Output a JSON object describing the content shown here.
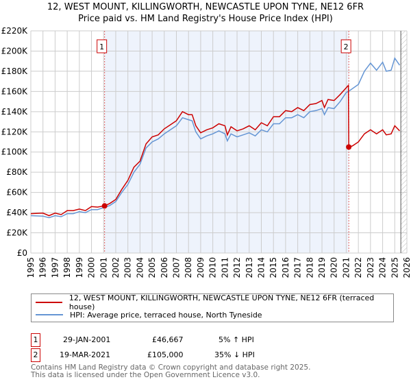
{
  "chart_data": {
    "type": "line",
    "title": "12, WEST MOUNT, KILLINGWORTH, NEWCASTLE UPON TYNE, NE12 6FR",
    "subtitle": "Price paid vs. HM Land Registry's House Price Index (HPI)",
    "xlim": [
      1995,
      2026
    ],
    "ylim": [
      0,
      220000
    ],
    "yticks": [
      "£0",
      "£20K",
      "£40K",
      "£60K",
      "£80K",
      "£100K",
      "£120K",
      "£140K",
      "£160K",
      "£180K",
      "£200K",
      "£220K"
    ],
    "xticks": [
      "1995",
      "1996",
      "1997",
      "1998",
      "1999",
      "2000",
      "2001",
      "2002",
      "2003",
      "2004",
      "2005",
      "2006",
      "2007",
      "2008",
      "2009",
      "2010",
      "2011",
      "2012",
      "2013",
      "2014",
      "2015",
      "2016",
      "2017",
      "2018",
      "2019",
      "2020",
      "2021",
      "2022",
      "2023",
      "2024",
      "2025",
      "2026"
    ],
    "grid": true,
    "colors": {
      "price": "#cc0000",
      "hpi": "#6495d4",
      "shade": "#eef3fc"
    },
    "shaded_range": [
      2001.08,
      2021.21
    ],
    "hatched_from": 2025.5,
    "series": [
      {
        "name": "12, WEST MOUNT, KILLINGWORTH, NEWCASTLE UPON TYNE, NE12 6FR (terraced house)",
        "points": [
          [
            1995,
            39
          ],
          [
            1996,
            39.5
          ],
          [
            1996.5,
            37
          ],
          [
            1997,
            39.5
          ],
          [
            1997.5,
            38
          ],
          [
            1998,
            42
          ],
          [
            1998.5,
            42
          ],
          [
            1999,
            43.5
          ],
          [
            1999.5,
            42
          ],
          [
            2000,
            46
          ],
          [
            2000.5,
            45.5
          ],
          [
            2001.08,
            46.7
          ],
          [
            2001.5,
            49
          ],
          [
            2002,
            53
          ],
          [
            2002.5,
            63
          ],
          [
            2003,
            72
          ],
          [
            2003.5,
            85
          ],
          [
            2004,
            91
          ],
          [
            2004.5,
            108
          ],
          [
            2005,
            115
          ],
          [
            2005.5,
            117
          ],
          [
            2006,
            123
          ],
          [
            2006.5,
            127
          ],
          [
            2007,
            131
          ],
          [
            2007.5,
            140
          ],
          [
            2008,
            137
          ],
          [
            2008.3,
            137
          ],
          [
            2008.6,
            126
          ],
          [
            2009,
            119
          ],
          [
            2009.5,
            122
          ],
          [
            2010,
            124
          ],
          [
            2010.5,
            128
          ],
          [
            2011,
            126
          ],
          [
            2011.2,
            117
          ],
          [
            2011.5,
            125
          ],
          [
            2012,
            121
          ],
          [
            2012.5,
            123
          ],
          [
            2013,
            126
          ],
          [
            2013.5,
            122
          ],
          [
            2014,
            129
          ],
          [
            2014.5,
            126
          ],
          [
            2015,
            135
          ],
          [
            2015.5,
            135
          ],
          [
            2016,
            141
          ],
          [
            2016.5,
            140
          ],
          [
            2017,
            144
          ],
          [
            2017.5,
            141
          ],
          [
            2018,
            147
          ],
          [
            2018.5,
            148
          ],
          [
            2019,
            151
          ],
          [
            2019.2,
            144
          ],
          [
            2019.5,
            152
          ],
          [
            2020,
            151
          ],
          [
            2020.5,
            157
          ],
          [
            2021.18,
            166
          ],
          [
            2021.21,
            105
          ],
          [
            2021.5,
            106
          ],
          [
            2022,
            110
          ],
          [
            2022.5,
            118
          ],
          [
            2023,
            122
          ],
          [
            2023.5,
            118
          ],
          [
            2024,
            122
          ],
          [
            2024.3,
            117
          ],
          [
            2024.7,
            118
          ],
          [
            2025,
            126
          ],
          [
            2025.4,
            121
          ]
        ]
      },
      {
        "name": "HPI: Average price, terraced house, North Tyneside",
        "points": [
          [
            1995,
            37
          ],
          [
            1996,
            36.5
          ],
          [
            1996.5,
            35
          ],
          [
            1997,
            37
          ],
          [
            1997.5,
            36
          ],
          [
            1998,
            39
          ],
          [
            1998.5,
            39
          ],
          [
            1999,
            41
          ],
          [
            1999.5,
            40
          ],
          [
            2000,
            43
          ],
          [
            2000.5,
            43
          ],
          [
            2001,
            45
          ],
          [
            2001.5,
            47
          ],
          [
            2002,
            51
          ],
          [
            2002.5,
            60
          ],
          [
            2003,
            68
          ],
          [
            2003.5,
            80
          ],
          [
            2004,
            88
          ],
          [
            2004.5,
            104
          ],
          [
            2005,
            110
          ],
          [
            2005.5,
            113
          ],
          [
            2006,
            118
          ],
          [
            2006.5,
            122
          ],
          [
            2007,
            126
          ],
          [
            2007.5,
            134
          ],
          [
            2008,
            132
          ],
          [
            2008.3,
            131
          ],
          [
            2008.6,
            120
          ],
          [
            2009,
            113
          ],
          [
            2009.5,
            116
          ],
          [
            2010,
            118
          ],
          [
            2010.5,
            121
          ],
          [
            2011,
            118
          ],
          [
            2011.2,
            111
          ],
          [
            2011.5,
            118
          ],
          [
            2012,
            115
          ],
          [
            2012.5,
            117
          ],
          [
            2013,
            119
          ],
          [
            2013.5,
            116
          ],
          [
            2014,
            122
          ],
          [
            2014.5,
            120
          ],
          [
            2015,
            128
          ],
          [
            2015.5,
            128
          ],
          [
            2016,
            134
          ],
          [
            2016.5,
            134
          ],
          [
            2017,
            137
          ],
          [
            2017.5,
            134
          ],
          [
            2018,
            140
          ],
          [
            2018.5,
            141
          ],
          [
            2019,
            143
          ],
          [
            2019.2,
            137
          ],
          [
            2019.5,
            144
          ],
          [
            2020,
            143
          ],
          [
            2020.5,
            150
          ],
          [
            2021,
            159
          ],
          [
            2021.3,
            161
          ],
          [
            2022,
            167
          ],
          [
            2022.5,
            180
          ],
          [
            2023,
            188
          ],
          [
            2023.5,
            181
          ],
          [
            2024,
            189
          ],
          [
            2024.3,
            180
          ],
          [
            2024.7,
            181
          ],
          [
            2025,
            193
          ],
          [
            2025.4,
            186
          ]
        ]
      }
    ],
    "annotations": [
      {
        "label": "1",
        "x": 2001.08,
        "y": 46667
      },
      {
        "label": "2",
        "x": 2021.21,
        "y": 105000
      }
    ]
  },
  "legend": {
    "price": "12, WEST MOUNT, KILLINGWORTH, NEWCASTLE UPON TYNE, NE12 6FR (terraced house)",
    "hpi": "HPI: Average price, terraced house, North Tyneside"
  },
  "sales": [
    {
      "num": "1",
      "date": "29-JAN-2001",
      "price": "£46,667",
      "hpi": "5% ↑ HPI"
    },
    {
      "num": "2",
      "date": "19-MAR-2021",
      "price": "£105,000",
      "hpi": "35% ↓ HPI"
    }
  ],
  "footer": {
    "line1": "Contains HM Land Registry data © Crown copyright and database right 2025.",
    "line2": "This data is licensed under the Open Government Licence v3.0."
  }
}
